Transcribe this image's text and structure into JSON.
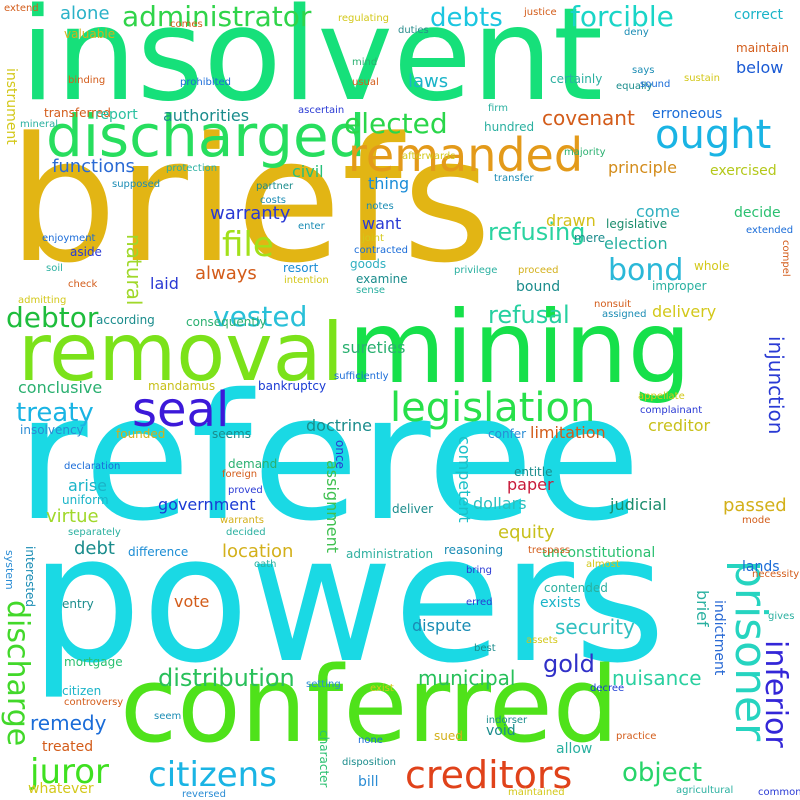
{
  "words": [
    {
      "text": "insolvent",
      "color": "#16e07a"
    },
    {
      "text": "briefs",
      "color": "#e2b514"
    },
    {
      "text": "referee",
      "color": "#1ad9e4"
    },
    {
      "text": "powers",
      "color": "#1ad9e4"
    },
    {
      "text": "conferred",
      "color": "#4fe21a"
    },
    {
      "text": "mining",
      "color": "#16e04a"
    },
    {
      "text": "removal",
      "color": "#7be21a"
    },
    {
      "text": "discharged",
      "color": "#27de5e"
    },
    {
      "text": "remanded",
      "color": "#e39a1a"
    },
    {
      "text": "ought",
      "color": "#1ab4e4"
    },
    {
      "text": "prisoner",
      "color": "#26d4c0"
    },
    {
      "text": "seal",
      "color": "#3c19d9"
    },
    {
      "text": "legislation",
      "color": "#27e04a"
    },
    {
      "text": "creditors",
      "color": "#e0421a"
    },
    {
      "text": "citizens",
      "color": "#1ab4e4"
    },
    {
      "text": "juror",
      "color": "#3fe020"
    },
    {
      "text": "discharge",
      "color": "#42d82a"
    },
    {
      "text": "inferior",
      "color": "#3326d8"
    },
    {
      "text": "file",
      "color": "#a2e01a"
    },
    {
      "text": "administrator",
      "color": "#30d44a"
    },
    {
      "text": "debts",
      "color": "#1bc6e0"
    },
    {
      "text": "forcible",
      "color": "#1ad5c7"
    },
    {
      "text": "elected",
      "color": "#2ad64a"
    },
    {
      "text": "bond",
      "color": "#2bb8d8"
    },
    {
      "text": "vested",
      "color": "#29c0d8"
    },
    {
      "text": "debtor",
      "color": "#1ebd3c"
    },
    {
      "text": "treaty",
      "color": "#1ab4e4"
    },
    {
      "text": "object",
      "color": "#27d46a"
    },
    {
      "text": "distribution",
      "color": "#29c05a"
    },
    {
      "text": "refusing",
      "color": "#2ad3a0"
    },
    {
      "text": "refusal",
      "color": "#26d0a0"
    },
    {
      "text": "covenant",
      "color": "#d35c1a"
    },
    {
      "text": "warranty",
      "color": "#2a3ad4"
    },
    {
      "text": "municipal",
      "color": "#27c05a"
    },
    {
      "text": "gold",
      "color": "#3030c8"
    },
    {
      "text": "remedy",
      "color": "#1a6cd8"
    },
    {
      "text": "nuisance",
      "color": "#2ad0a0"
    },
    {
      "text": "security",
      "color": "#30c0c0"
    },
    {
      "text": "natural",
      "color": "#a0d82a"
    },
    {
      "text": "injunction",
      "color": "#2a3ad4"
    },
    {
      "text": "alone",
      "color": "#2ab2c8"
    },
    {
      "text": "functions",
      "color": "#2a6ad4"
    },
    {
      "text": "authorities",
      "color": "#1a8c8c"
    },
    {
      "text": "laws",
      "color": "#1ab4c8"
    },
    {
      "text": "below",
      "color": "#1a5ad4"
    },
    {
      "text": "correct",
      "color": "#1ab4c8"
    },
    {
      "text": "erroneous",
      "color": "#1a6cd8"
    },
    {
      "text": "principle",
      "color": "#d38c1a"
    },
    {
      "text": "exercised",
      "color": "#b4c81a"
    },
    {
      "text": "civil",
      "color": "#27c07a"
    },
    {
      "text": "thing",
      "color": "#1a8cd8"
    },
    {
      "text": "want",
      "color": "#2a3ad4"
    },
    {
      "text": "drawn",
      "color": "#d3c01a"
    },
    {
      "text": "come",
      "color": "#30b0c0"
    },
    {
      "text": "decide",
      "color": "#2ac070"
    },
    {
      "text": "election",
      "color": "#26b0a0"
    },
    {
      "text": "always",
      "color": "#d35c1a"
    },
    {
      "text": "laid",
      "color": "#2a3ad4"
    },
    {
      "text": "sureties",
      "color": "#2ab070"
    },
    {
      "text": "delivery",
      "color": "#d3c81a"
    },
    {
      "text": "doctrine",
      "color": "#1a8c8c"
    },
    {
      "text": "creditor",
      "color": "#c8c01a"
    },
    {
      "text": "limitation",
      "color": "#d35c1a"
    },
    {
      "text": "conclusive",
      "color": "#2ab070"
    },
    {
      "text": "arise",
      "color": "#1ab4c8"
    },
    {
      "text": "virtue",
      "color": "#a0d82a"
    },
    {
      "text": "debt",
      "color": "#1a8c8c"
    },
    {
      "text": "government",
      "color": "#1a3ad4"
    },
    {
      "text": "location",
      "color": "#d3b01a"
    },
    {
      "text": "equity",
      "color": "#c8c01a"
    },
    {
      "text": "dollars",
      "color": "#2ac0c0"
    },
    {
      "text": "paper",
      "color": "#c81a3a"
    },
    {
      "text": "judicial",
      "color": "#1a8c6c"
    },
    {
      "text": "passed",
      "color": "#d3b01a"
    },
    {
      "text": "vote",
      "color": "#d35c1a"
    },
    {
      "text": "dispute",
      "color": "#1a8cb4"
    },
    {
      "text": "exists",
      "color": "#1ab4c8"
    },
    {
      "text": "brief",
      "color": "#2ab0a0"
    },
    {
      "text": "assignment",
      "color": "#3fc050"
    },
    {
      "text": "competent",
      "color": "#1ac0c8"
    },
    {
      "text": "indictment",
      "color": "#2a6ad4"
    },
    {
      "text": "lands",
      "color": "#1a6cd8"
    },
    {
      "text": "instrument",
      "color": "#d3c81a"
    },
    {
      "text": "transferred",
      "color": "#d35c1a"
    },
    {
      "text": "valuable",
      "color": "#d3b01a"
    },
    {
      "text": "report",
      "color": "#2ac0a0"
    },
    {
      "text": "certainly",
      "color": "#2ab0a0"
    },
    {
      "text": "hundred",
      "color": "#2ab0a0"
    },
    {
      "text": "maintain",
      "color": "#d35c1a"
    },
    {
      "text": "bankruptcy",
      "color": "#1a3ad4"
    },
    {
      "text": "mandamus",
      "color": "#c8c01a"
    },
    {
      "text": "insolvency",
      "color": "#2a8cd4"
    },
    {
      "text": "treated",
      "color": "#d35c1a"
    },
    {
      "text": "citizen",
      "color": "#1ab4c8"
    },
    {
      "text": "whatever",
      "color": "#d3c81a"
    },
    {
      "text": "bill",
      "color": "#2a8cd4"
    },
    {
      "text": "void",
      "color": "#1a8c8c"
    },
    {
      "text": "allow",
      "color": "#2ab0a0"
    },
    {
      "text": "sued",
      "color": "#d3b01a"
    },
    {
      "text": "character",
      "color": "#2ac070"
    },
    {
      "text": "mortgage",
      "color": "#2ac070"
    },
    {
      "text": "entry",
      "color": "#1a8c8c"
    },
    {
      "text": "difference",
      "color": "#1a8cd4"
    },
    {
      "text": "uniform",
      "color": "#1ab4c8"
    },
    {
      "text": "aside",
      "color": "#2a3ad4"
    },
    {
      "text": "goods",
      "color": "#30b0c0"
    },
    {
      "text": "examine",
      "color": "#1a8c8c"
    },
    {
      "text": "resort",
      "color": "#1a8cd4"
    },
    {
      "text": "whole",
      "color": "#d3c81a"
    },
    {
      "text": "improper",
      "color": "#2ab0a0"
    },
    {
      "text": "legislative",
      "color": "#1a8c6c"
    },
    {
      "text": "mere",
      "color": "#1a8c8c"
    },
    {
      "text": "bound",
      "color": "#1a8c8c"
    },
    {
      "text": "consequently",
      "color": "#2ab070"
    },
    {
      "text": "according",
      "color": "#1a8c8c"
    },
    {
      "text": "seems",
      "color": "#1a8c8c"
    },
    {
      "text": "founded",
      "color": "#d3b01a"
    },
    {
      "text": "confer",
      "color": "#2a8cd4"
    },
    {
      "text": "deliver",
      "color": "#1a8c8c"
    },
    {
      "text": "reasoning",
      "color": "#1a8cb4"
    },
    {
      "text": "unconstitutional",
      "color": "#2ac070"
    },
    {
      "text": "contended",
      "color": "#2ab0a0"
    },
    {
      "text": "administration",
      "color": "#30b0a0"
    },
    {
      "text": "interested",
      "color": "#1a8cb4"
    },
    {
      "text": "once",
      "color": "#2a3ad4"
    },
    {
      "text": "demand",
      "color": "#2ab070"
    },
    {
      "text": "entitle",
      "color": "#1a8c8c"
    },
    {
      "text": "system",
      "color": "#2a8cd4"
    },
    {
      "text": "extend",
      "color": "#d35c1a"
    },
    {
      "text": "binding",
      "color": "#d35c1a"
    },
    {
      "text": "prohibited",
      "color": "#1a6cd8"
    },
    {
      "text": "regulating",
      "color": "#d3c81a"
    },
    {
      "text": "duties",
      "color": "#2a8c8c"
    },
    {
      "text": "justice",
      "color": "#d35c1a"
    },
    {
      "text": "deny",
      "color": "#1a8cb4"
    },
    {
      "text": "mind",
      "color": "#2ab070"
    },
    {
      "text": "usual",
      "color": "#d35c1a"
    },
    {
      "text": "says",
      "color": "#1a8cb4"
    },
    {
      "text": "equally",
      "color": "#1a8c8c"
    },
    {
      "text": "sound",
      "color": "#1a6cd8"
    },
    {
      "text": "sustain",
      "color": "#d3c81a"
    },
    {
      "text": "ascertain",
      "color": "#2a3ad4"
    },
    {
      "text": "firm",
      "color": "#2ab0a0"
    },
    {
      "text": "mineral",
      "color": "#2ab0a0"
    },
    {
      "text": "afterwards",
      "color": "#d3c81a"
    },
    {
      "text": "majority",
      "color": "#2ab070"
    },
    {
      "text": "transfer",
      "color": "#1a8cb4"
    },
    {
      "text": "notes",
      "color": "#1a8cb4"
    },
    {
      "text": "supposed",
      "color": "#1a8cb4"
    },
    {
      "text": "protection",
      "color": "#2ab0a0"
    },
    {
      "text": "partner",
      "color": "#1a8c8c"
    },
    {
      "text": "costs",
      "color": "#1a8cb4"
    },
    {
      "text": "enter",
      "color": "#1a8cb4"
    },
    {
      "text": "enjoyment",
      "color": "#1a6cd8"
    },
    {
      "text": "joint",
      "color": "#d3c81a"
    },
    {
      "text": "contracted",
      "color": "#1a6cd8"
    },
    {
      "text": "extended",
      "color": "#1a6cd8"
    },
    {
      "text": "compel",
      "color": "#d35c1a"
    },
    {
      "text": "privilege",
      "color": "#2ab0a0"
    },
    {
      "text": "proceed",
      "color": "#d3b01a"
    },
    {
      "text": "soil",
      "color": "#2ab0a0"
    },
    {
      "text": "admitting",
      "color": "#d3c81a"
    },
    {
      "text": "check",
      "color": "#d35c1a"
    },
    {
      "text": "intention",
      "color": "#d3c81a"
    },
    {
      "text": "sense",
      "color": "#2ab0a0"
    },
    {
      "text": "nonsuit",
      "color": "#d35c1a"
    },
    {
      "text": "assigned",
      "color": "#1a8cb4"
    },
    {
      "text": "sufficiently",
      "color": "#1a6cd8"
    },
    {
      "text": "appellate",
      "color": "#d3c81a"
    },
    {
      "text": "complainant",
      "color": "#2a3ad4"
    },
    {
      "text": "declaration",
      "color": "#1a6cd8"
    },
    {
      "text": "foreign",
      "color": "#d35c1a"
    },
    {
      "text": "proved",
      "color": "#2a3ad4"
    },
    {
      "text": "warrants",
      "color": "#d3b01a"
    },
    {
      "text": "separately",
      "color": "#2ab0a0"
    },
    {
      "text": "decided",
      "color": "#2ab0a0"
    },
    {
      "text": "oath",
      "color": "#2ab0a0"
    },
    {
      "text": "trespass",
      "color": "#d35c1a"
    },
    {
      "text": "almost",
      "color": "#d3c81a"
    },
    {
      "text": "necessity",
      "color": "#d35c1a"
    },
    {
      "text": "mode",
      "color": "#d35c1a"
    },
    {
      "text": "bring",
      "color": "#2a3ad4"
    },
    {
      "text": "erred",
      "color": "#2a3ad4"
    },
    {
      "text": "gives",
      "color": "#2ab0a0"
    },
    {
      "text": "assets",
      "color": "#d3c81a"
    },
    {
      "text": "best",
      "color": "#1a8c8c"
    },
    {
      "text": "setting",
      "color": "#2a8cd4"
    },
    {
      "text": "exist",
      "color": "#d3c81a"
    },
    {
      "text": "decree",
      "color": "#1a3ad4"
    },
    {
      "text": "controversy",
      "color": "#d35c1a"
    },
    {
      "text": "seem",
      "color": "#1a8cb4"
    },
    {
      "text": "indorser",
      "color": "#1a8c8c"
    },
    {
      "text": "none",
      "color": "#1a6cd8"
    },
    {
      "text": "practice",
      "color": "#d35c1a"
    },
    {
      "text": "disposition",
      "color": "#1a8c8c"
    },
    {
      "text": "reversed",
      "color": "#2a8cd4"
    },
    {
      "text": "maintained",
      "color": "#d3c81a"
    },
    {
      "text": "agricultural",
      "color": "#2ab0a0"
    },
    {
      "text": "common",
      "color": "#2a3ad4"
    },
    {
      "text": "comes",
      "color": "#d35c1a"
    }
  ]
}
